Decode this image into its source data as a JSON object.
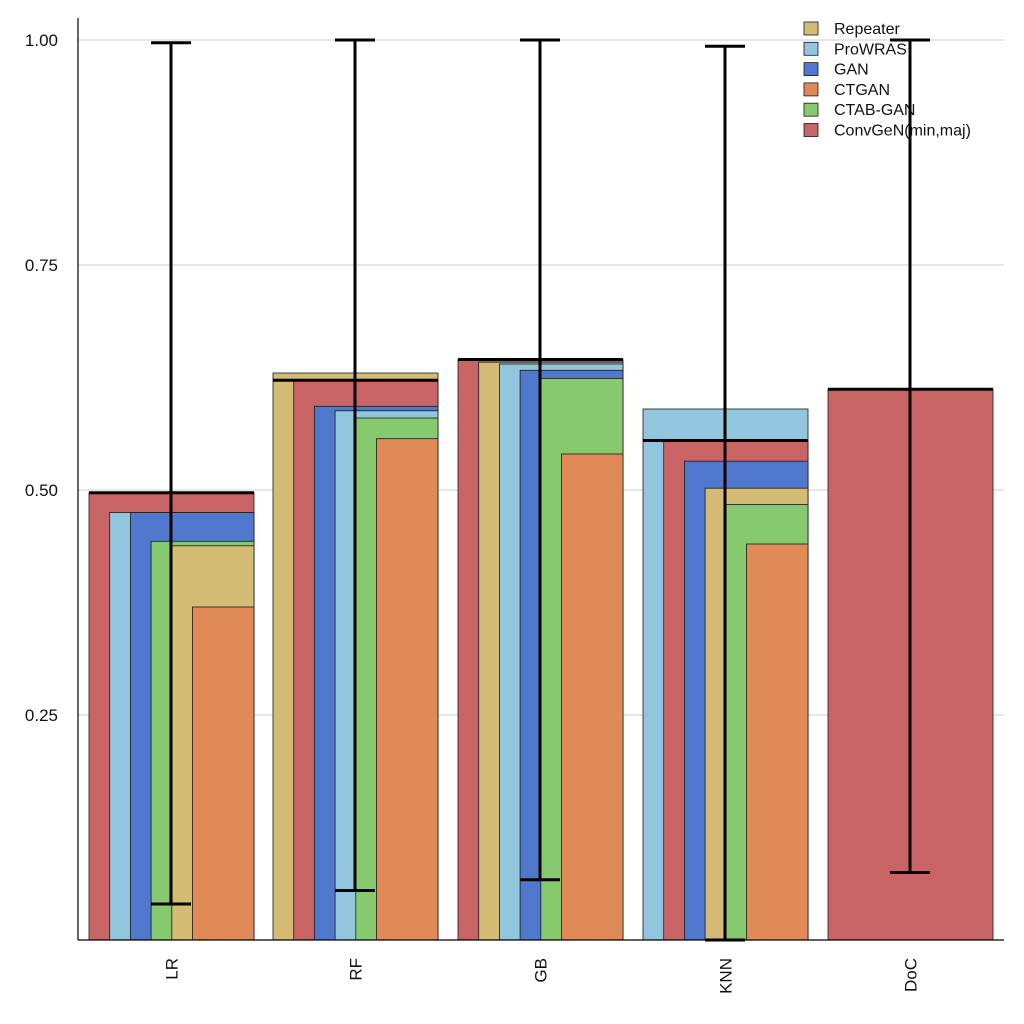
{
  "chart_data": {
    "type": "bar",
    "title": "",
    "xlabel": "",
    "ylabel": "",
    "ylim": [
      0,
      1.01
    ],
    "yticks": [
      "0.25",
      "0.50",
      "0.75",
      "1.00"
    ],
    "grid": "horizontal",
    "legend_position": "top-right",
    "categories": [
      "LR",
      "RF",
      "GB",
      "KNN",
      "DoC"
    ],
    "series": [
      {
        "name": "Repeater",
        "color": "#d4bc74",
        "values": [
          0.438,
          0.63,
          0.642,
          0.502,
          null
        ]
      },
      {
        "name": "ProWRAS",
        "color": "#92c5de",
        "values": [
          0.475,
          0.588,
          0.64,
          0.59,
          null
        ]
      },
      {
        "name": "GAN",
        "color": "#5078cc",
        "values": [
          0.475,
          0.593,
          0.633,
          0.532,
          null
        ]
      },
      {
        "name": "CTGAN",
        "color": "#e08a58",
        "values": [
          0.37,
          0.557,
          0.54,
          0.44,
          null
        ]
      },
      {
        "name": "CTAB-GAN",
        "color": "#86c96e",
        "values": [
          0.443,
          0.58,
          0.624,
          0.484,
          null
        ]
      },
      {
        "name": "ConvGeN(min,maj)",
        "color": "#c96464",
        "values": [
          0.497,
          0.622,
          0.645,
          0.555,
          0.612
        ]
      }
    ],
    "error_bars": [
      {
        "category": "LR",
        "mean": 0.497,
        "low": 0.04,
        "high": 0.997
      },
      {
        "category": "RF",
        "mean": 0.622,
        "low": 0.055,
        "high": 1.0
      },
      {
        "category": "GB",
        "mean": 0.645,
        "low": 0.067,
        "high": 1.0
      },
      {
        "category": "KNN",
        "mean": 0.555,
        "low": 0.0,
        "high": 0.993
      },
      {
        "category": "DoC",
        "mean": 0.612,
        "low": 0.075,
        "high": 1.0
      }
    ]
  }
}
